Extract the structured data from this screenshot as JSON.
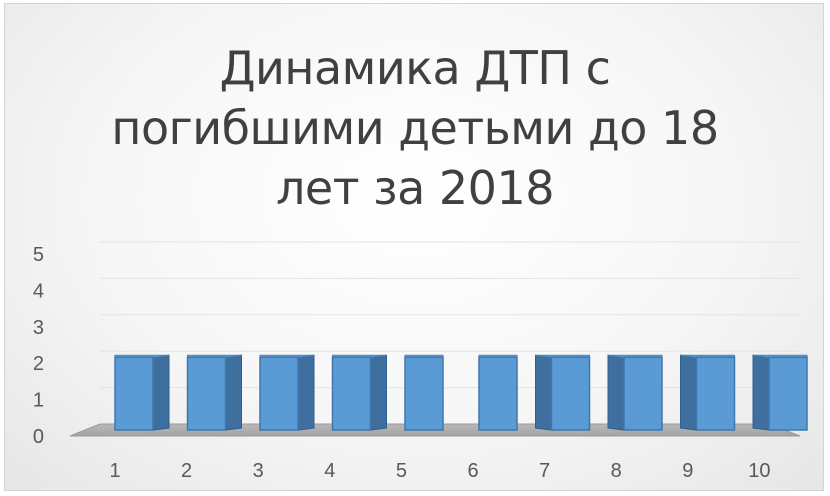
{
  "chart_data": {
    "type": "bar",
    "style": "3d-clustered-column",
    "title_lines": [
      "Динамика ДТП с",
      "погибшими детьми до 18",
      "лет за 2018"
    ],
    "categories": [
      "1",
      "2",
      "3",
      "4",
      "5",
      "6",
      "7",
      "8",
      "9",
      "10"
    ],
    "series": [
      {
        "values": [
          2,
          2,
          2,
          2,
          2,
          2,
          2,
          2,
          2,
          2
        ],
        "color": "#5B9BD5"
      }
    ],
    "y_ticks": [
      "0",
      "1",
      "2",
      "3",
      "4",
      "5"
    ],
    "ylim": [
      0,
      5
    ],
    "grid": true,
    "legend": "none",
    "xlabel": "",
    "ylabel": ""
  }
}
